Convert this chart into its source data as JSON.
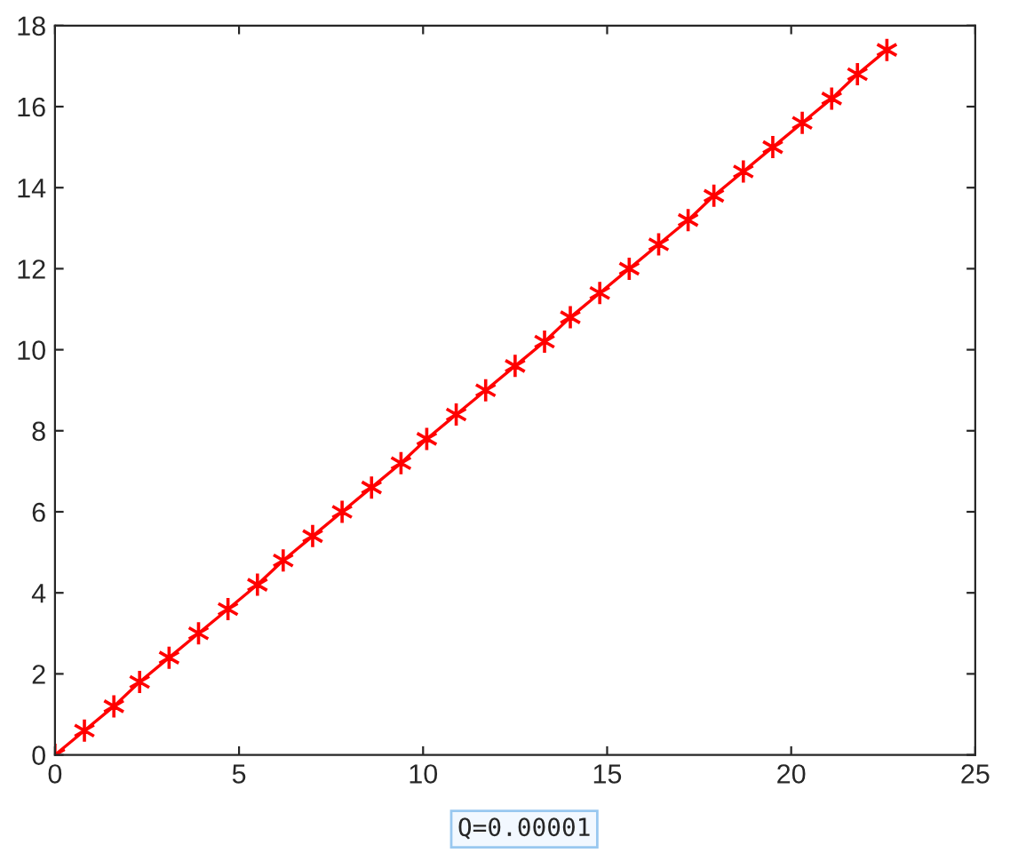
{
  "chart_data": {
    "type": "line",
    "x": [
      0,
      0.8,
      1.6,
      2.3,
      3.1,
      3.9,
      4.7,
      5.5,
      6.2,
      7.0,
      7.8,
      8.6,
      9.4,
      10.1,
      10.9,
      11.7,
      12.5,
      13.3,
      14.0,
      14.8,
      15.6,
      16.4,
      17.2,
      17.9,
      18.7,
      19.5,
      20.3,
      21.1,
      21.8,
      22.6
    ],
    "series": [
      {
        "color": "#ff0000",
        "values": [
          0,
          0.6,
          1.2,
          1.8,
          2.4,
          3.0,
          3.6,
          4.2,
          4.8,
          5.4,
          6.0,
          6.6,
          7.2,
          7.8,
          8.4,
          9.0,
          9.6,
          10.2,
          10.8,
          11.4,
          12.0,
          12.6,
          13.2,
          13.8,
          14.4,
          15.0,
          15.6,
          16.2,
          16.8,
          17.4
        ]
      }
    ],
    "xlim": [
      0,
      25
    ],
    "xticks": [
      0,
      5,
      10,
      15,
      20,
      25
    ],
    "ylim": [
      0,
      18
    ],
    "yticks": [
      0,
      2,
      4,
      6,
      8,
      10,
      12,
      14,
      16,
      18
    ],
    "marker": "cross",
    "line_style": "solid",
    "grid": false,
    "legend": false,
    "annotations": [
      "Q=0.00001"
    ]
  }
}
